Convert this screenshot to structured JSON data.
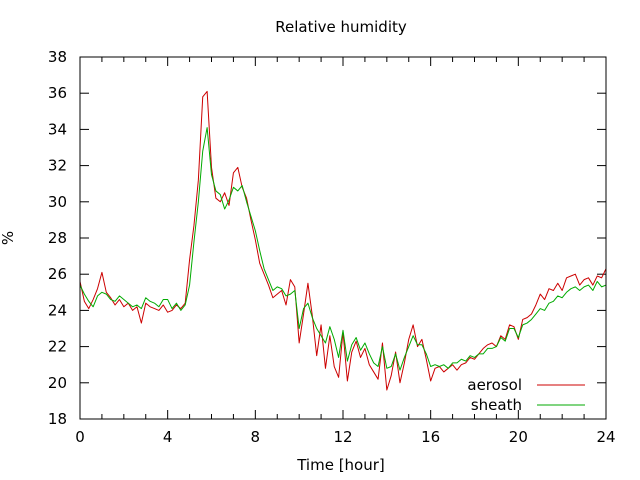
{
  "chart_data": {
    "type": "line",
    "title": "Relative humidity",
    "xlabel": "Time [hour]",
    "ylabel": "%",
    "xlim": [
      0,
      24
    ],
    "ylim": [
      18,
      38
    ],
    "xticks": [
      0,
      4,
      8,
      12,
      16,
      20,
      24
    ],
    "xtick_labels": [
      "0",
      "4",
      "8",
      "12",
      "16",
      "20",
      "24"
    ],
    "yticks": [
      18,
      20,
      22,
      24,
      26,
      28,
      30,
      32,
      34,
      36,
      38
    ],
    "ytick_labels": [
      "18",
      "20",
      "22",
      "24",
      "26",
      "28",
      "30",
      "32",
      "34",
      "36",
      "38"
    ],
    "grid": false,
    "legend_position": "bottom-right",
    "colors": {
      "aerosol": "#cc0000",
      "sheath": "#00aa00"
    },
    "series": [
      {
        "name": "aerosol",
        "x": [
          0,
          0.2,
          0.4,
          0.6,
          0.8,
          1.0,
          1.2,
          1.4,
          1.6,
          1.8,
          2.0,
          2.2,
          2.4,
          2.6,
          2.8,
          3.0,
          3.2,
          3.4,
          3.6,
          3.8,
          4.0,
          4.2,
          4.4,
          4.6,
          4.8,
          5.0,
          5.2,
          5.4,
          5.6,
          5.8,
          6.0,
          6.2,
          6.4,
          6.6,
          6.8,
          7.0,
          7.2,
          7.4,
          7.6,
          7.8,
          8.0,
          8.2,
          8.4,
          8.6,
          8.8,
          9.0,
          9.2,
          9.4,
          9.6,
          9.8,
          10.0,
          10.2,
          10.4,
          10.6,
          10.8,
          11.0,
          11.2,
          11.4,
          11.6,
          11.8,
          12.0,
          12.2,
          12.4,
          12.6,
          12.8,
          13.0,
          13.2,
          13.4,
          13.6,
          13.8,
          14.0,
          14.2,
          14.4,
          14.6,
          14.8,
          15.0,
          15.2,
          15.4,
          15.6,
          15.8,
          16.0,
          16.2,
          16.4,
          16.6,
          16.8,
          17.0,
          17.2,
          17.4,
          17.6,
          17.8,
          18.0,
          18.2,
          18.4,
          18.6,
          18.8,
          19.0,
          19.2,
          19.4,
          19.6,
          19.8,
          20.0,
          20.2,
          20.4,
          20.6,
          20.8,
          21.0,
          21.2,
          21.4,
          21.6,
          21.8,
          22.0,
          22.2,
          22.4,
          22.6,
          22.8,
          23.0,
          23.2,
          23.4,
          23.6,
          23.8,
          24.0
        ],
        "values": [
          25.6,
          24.5,
          24.1,
          24.6,
          25.2,
          26.1,
          25.0,
          24.7,
          24.3,
          24.6,
          24.2,
          24.4,
          24.0,
          24.2,
          23.3,
          24.4,
          24.2,
          24.1,
          24.0,
          24.3,
          23.9,
          24.0,
          24.3,
          24.1,
          24.4,
          26.8,
          28.7,
          31.2,
          35.8,
          36.1,
          31.9,
          30.2,
          30.0,
          30.5,
          29.8,
          31.6,
          31.9,
          30.8,
          30.2,
          29.0,
          27.9,
          26.6,
          26.0,
          25.4,
          24.7,
          24.9,
          25.1,
          24.3,
          25.7,
          25.3,
          22.2,
          23.8,
          25.5,
          23.7,
          21.5,
          23.2,
          20.8,
          22.6,
          20.9,
          20.3,
          22.8,
          20.1,
          21.7,
          22.3,
          21.4,
          21.9,
          21.0,
          20.6,
          20.2,
          22.2,
          19.6,
          20.4,
          21.7,
          20.0,
          21.1,
          22.4,
          23.2,
          22.0,
          22.4,
          21.3,
          20.1,
          20.8,
          20.9,
          20.6,
          20.8,
          21.0,
          20.7,
          21.0,
          21.1,
          21.4,
          21.3,
          21.6,
          21.9,
          22.1,
          22.2,
          22.0,
          22.6,
          22.4,
          23.2,
          23.1,
          22.4,
          23.5,
          23.6,
          23.8,
          24.3,
          24.9,
          24.6,
          25.2,
          25.1,
          25.5,
          25.1,
          25.8,
          25.9,
          26.0,
          25.4,
          25.7,
          25.8,
          25.4,
          25.9,
          25.8,
          26.3
        ]
      },
      {
        "name": "sheath",
        "x": [
          0,
          0.2,
          0.4,
          0.6,
          0.8,
          1.0,
          1.2,
          1.4,
          1.6,
          1.8,
          2.0,
          2.2,
          2.4,
          2.6,
          2.8,
          3.0,
          3.2,
          3.4,
          3.6,
          3.8,
          4.0,
          4.2,
          4.4,
          4.6,
          4.8,
          5.0,
          5.2,
          5.4,
          5.6,
          5.8,
          6.0,
          6.2,
          6.4,
          6.6,
          6.8,
          7.0,
          7.2,
          7.4,
          7.6,
          7.8,
          8.0,
          8.2,
          8.4,
          8.6,
          8.8,
          9.0,
          9.2,
          9.4,
          9.6,
          9.8,
          10.0,
          10.2,
          10.4,
          10.6,
          10.8,
          11.0,
          11.2,
          11.4,
          11.6,
          11.8,
          12.0,
          12.2,
          12.4,
          12.6,
          12.8,
          13.0,
          13.2,
          13.4,
          13.6,
          13.8,
          14.0,
          14.2,
          14.4,
          14.6,
          14.8,
          15.0,
          15.2,
          15.4,
          15.6,
          15.8,
          16.0,
          16.2,
          16.4,
          16.6,
          16.8,
          17.0,
          17.2,
          17.4,
          17.6,
          17.8,
          18.0,
          18.2,
          18.4,
          18.6,
          18.8,
          19.0,
          19.2,
          19.4,
          19.6,
          19.8,
          20.0,
          20.2,
          20.4,
          20.6,
          20.8,
          21.0,
          21.2,
          21.4,
          21.6,
          21.8,
          22.0,
          22.2,
          22.4,
          22.6,
          22.8,
          23.0,
          23.2,
          23.4,
          23.6,
          23.8,
          24.0
        ],
        "values": [
          25.4,
          24.9,
          24.5,
          24.2,
          24.8,
          25.0,
          24.9,
          24.6,
          24.5,
          24.8,
          24.6,
          24.4,
          24.2,
          24.3,
          24.1,
          24.7,
          24.5,
          24.4,
          24.2,
          24.6,
          24.6,
          24.1,
          24.4,
          24.0,
          24.3,
          25.4,
          27.8,
          30.0,
          32.8,
          34.1,
          31.5,
          30.6,
          30.4,
          29.6,
          30.1,
          30.8,
          30.6,
          30.9,
          30.0,
          29.2,
          28.4,
          27.3,
          26.3,
          25.7,
          25.1,
          25.3,
          25.2,
          24.8,
          24.9,
          25.1,
          23.0,
          24.1,
          24.4,
          23.6,
          23.0,
          22.6,
          22.2,
          23.1,
          22.4,
          21.4,
          22.9,
          21.2,
          22.1,
          22.5,
          21.8,
          22.2,
          21.6,
          21.1,
          20.9,
          22.0,
          20.8,
          20.9,
          21.6,
          20.7,
          21.4,
          22.0,
          22.6,
          22.1,
          22.1,
          21.6,
          20.9,
          21.0,
          20.9,
          21.0,
          20.8,
          21.1,
          21.1,
          21.3,
          21.2,
          21.5,
          21.4,
          21.6,
          21.6,
          21.9,
          21.9,
          22.0,
          22.5,
          22.3,
          23.0,
          23.0,
          22.5,
          23.2,
          23.3,
          23.5,
          23.8,
          24.1,
          24.0,
          24.4,
          24.5,
          24.8,
          24.7,
          25.0,
          25.2,
          25.3,
          25.1,
          25.3,
          25.4,
          25.1,
          25.6,
          25.3,
          25.4
        ]
      }
    ]
  }
}
